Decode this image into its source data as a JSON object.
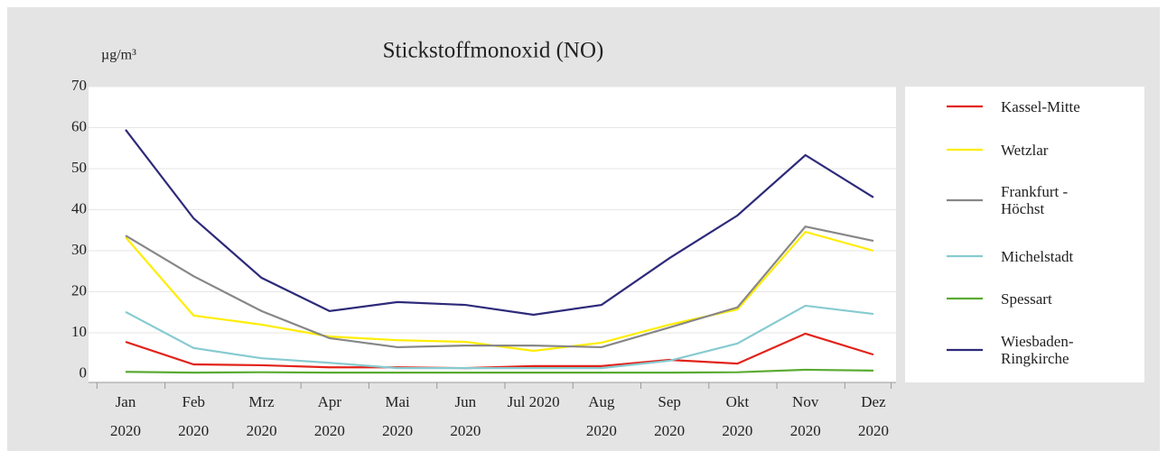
{
  "chart_data": {
    "type": "line",
    "title": "Stickstoffmonoxid (NO)",
    "y_label": "µg/m³",
    "categories": [
      "Jan 2020",
      "Feb 2020",
      "Mrz 2020",
      "Apr 2020",
      "Mai 2020",
      "Jun 2020",
      "Jul 2020",
      "Aug 2020",
      "Sep 2020",
      "Okt 2020",
      "Nov 2020",
      "Dez 2020"
    ],
    "series": [
      {
        "name": "Kassel-Mitte",
        "color": "#e2231a",
        "values": [
          7.8,
          2.3,
          2.1,
          1.6,
          1.6,
          1.4,
          1.9,
          1.9,
          3.4,
          2.5,
          9.8,
          4.7
        ]
      },
      {
        "name": "Wetzlar",
        "color": "#ffed00",
        "values": [
          33.3,
          14.2,
          12,
          9.1,
          8.2,
          7.8,
          5.6,
          7.6,
          12,
          15.7,
          34.6,
          30
        ]
      },
      {
        "name": "Frankfurt - Höchst",
        "color": "#878787",
        "values": [
          33.7,
          23.8,
          15.3,
          8.7,
          6.5,
          6.9,
          6.9,
          6.5,
          11.3,
          16.2,
          35.9,
          32.4
        ]
      },
      {
        "name": "Michelstadt",
        "color": "#86cbd0",
        "values": [
          15.1,
          6.3,
          3.8,
          2.7,
          1.4,
          1.4,
          1.4,
          1.4,
          3.2,
          7.4,
          16.6,
          14.6
        ]
      },
      {
        "name": "Spessart",
        "color": "#5aab32",
        "values": [
          0.5,
          0.3,
          0.4,
          0.3,
          0.3,
          0.3,
          0.3,
          0.3,
          0.3,
          0.4,
          1,
          0.8
        ]
      },
      {
        "name": "Wiesbaden-Ringkirche",
        "color": "#2e2a7a",
        "values": [
          59.5,
          37.9,
          23.4,
          15.3,
          17.5,
          16.8,
          14.4,
          16.8,
          28.2,
          38.6,
          53.3,
          43
        ]
      }
    ],
    "ylim": [
      -2,
      70
    ],
    "yticks": [
      0,
      10,
      20,
      30,
      40,
      50,
      60,
      70
    ],
    "grid": true,
    "legend": "right"
  }
}
